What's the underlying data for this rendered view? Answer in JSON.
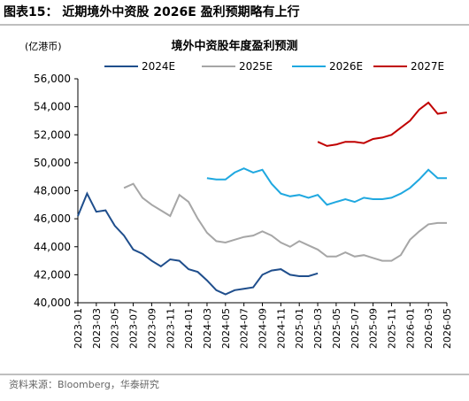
{
  "chart_data": {
    "type": "line",
    "header": "图表15：  近期境外中资股 2026E 盈利预期略有上行",
    "unit_label": "(亿港币)",
    "title": "境外中资股年度盈利预测",
    "source": "资料来源：Bloomberg，华泰研究",
    "categories": [
      "2023-01",
      null,
      "2023-03",
      null,
      "2023-05",
      null,
      "2023-07",
      null,
      "2023-09",
      null,
      "2023-11",
      null,
      "2024-01",
      null,
      "2024-03",
      null,
      "2024-05",
      null,
      "2024-07",
      null,
      "2024-09",
      null,
      "2024-11",
      null,
      "2025-01",
      null,
      "2025-03",
      null,
      "2025-05",
      null,
      "2025-07",
      null,
      "2025-09",
      null,
      "2025-11",
      null,
      "2026-01",
      null,
      "2026-03",
      null,
      "2026-05"
    ],
    "ylim": [
      40000,
      56000
    ],
    "yticks": [
      {
        "value": 40000,
        "label": "40,000"
      },
      {
        "value": 42000,
        "label": "42,000"
      },
      {
        "value": 44000,
        "label": "44,000"
      },
      {
        "value": 46000,
        "label": "46,000"
      },
      {
        "value": 48000,
        "label": "48,000"
      },
      {
        "value": 50000,
        "label": "50,000"
      },
      {
        "value": 52000,
        "label": "52,000"
      },
      {
        "value": 54000,
        "label": "54,000"
      },
      {
        "value": 56000,
        "label": "56,000"
      }
    ],
    "series": [
      {
        "name": "2024E",
        "color": "#1f4e8c",
        "values": [
          46200,
          47800,
          46500,
          46600,
          45500,
          44800,
          43800,
          43500,
          43000,
          42600,
          43100,
          43000,
          42400,
          42200,
          41600,
          40900,
          40600,
          40900,
          41000,
          41100,
          42000,
          42300,
          42400,
          42000,
          41900,
          41900,
          42100,
          null,
          null,
          null,
          null,
          null,
          null,
          null,
          null,
          null,
          null,
          null,
          null,
          null,
          null
        ]
      },
      {
        "name": "2025E",
        "color": "#a6a6a6",
        "values": [
          null,
          null,
          null,
          null,
          null,
          48200,
          48500,
          47500,
          47000,
          46600,
          46200,
          47700,
          47200,
          46000,
          45000,
          44400,
          44300,
          44500,
          44700,
          44800,
          45100,
          44800,
          44300,
          44000,
          44400,
          44100,
          43800,
          43300,
          43300,
          43600,
          43300,
          43400,
          43200,
          43000,
          43000,
          43400,
          44500,
          45100,
          45600,
          45700,
          45700
        ]
      },
      {
        "name": "2026E",
        "color": "#1fa8e0",
        "values": [
          null,
          null,
          null,
          null,
          null,
          null,
          null,
          null,
          null,
          null,
          null,
          null,
          null,
          null,
          48900,
          48800,
          48800,
          49300,
          49600,
          49300,
          49500,
          48500,
          47800,
          47600,
          47700,
          47500,
          47700,
          47000,
          47200,
          47400,
          47200,
          47500,
          47400,
          47400,
          47500,
          47800,
          48200,
          48800,
          49500,
          48900,
          48900
        ]
      },
      {
        "name": "2027E",
        "color": "#c00000",
        "values": [
          null,
          null,
          null,
          null,
          null,
          null,
          null,
          null,
          null,
          null,
          null,
          null,
          null,
          null,
          null,
          null,
          null,
          null,
          null,
          null,
          null,
          null,
          null,
          null,
          null,
          null,
          51500,
          51200,
          51300,
          51500,
          51500,
          51400,
          51700,
          51800,
          52000,
          52500,
          53000,
          53800,
          54300,
          53500,
          53600
        ]
      }
    ]
  }
}
